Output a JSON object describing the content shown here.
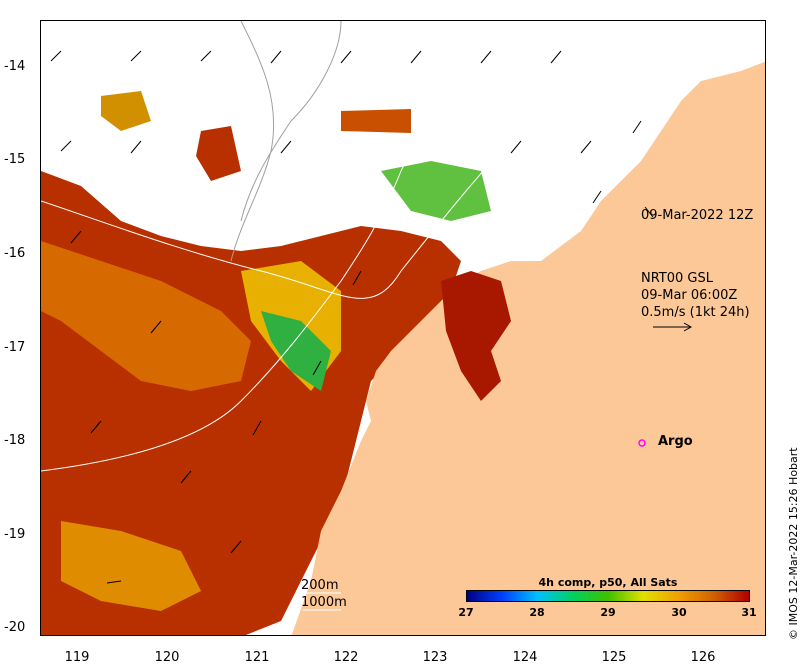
{
  "map": {
    "latitude_ticks": [
      "-14",
      "-15",
      "-16",
      "-17",
      "-18",
      "-19",
      "-20"
    ],
    "longitude_ticks": [
      "119",
      "120",
      "121",
      "122",
      "123",
      "124",
      "125",
      "126"
    ],
    "annotation_time": "09-Mar-2022 12Z",
    "current_source": "NRT00 GSL",
    "current_time": "09-Mar 06:00Z",
    "current_scale": "0.5m/s (1kt 24h)",
    "argo_label": "Argo",
    "depth_contours": [
      "200m",
      "1000m"
    ],
    "credit": "© IMOS 12-Mar-2022 15:26 Hobart",
    "colorbar": {
      "title": "4h comp, p50, All Sats",
      "ticks": [
        "27",
        "28",
        "29",
        "30",
        "31"
      ],
      "colors": [
        "#000080",
        "#0040ff",
        "#00c0ff",
        "#00d060",
        "#40c000",
        "#e0e000",
        "#f0a000",
        "#d06000",
        "#b00000"
      ]
    },
    "colors": {
      "land": "#fcc897",
      "sst_warm": "#c04000",
      "sst_hot": "#a01000",
      "sst_mid": "#e08000",
      "sst_cool": "#f0c000",
      "sst_cold": "#40c040",
      "argo_marker": "#ff00ff"
    }
  }
}
